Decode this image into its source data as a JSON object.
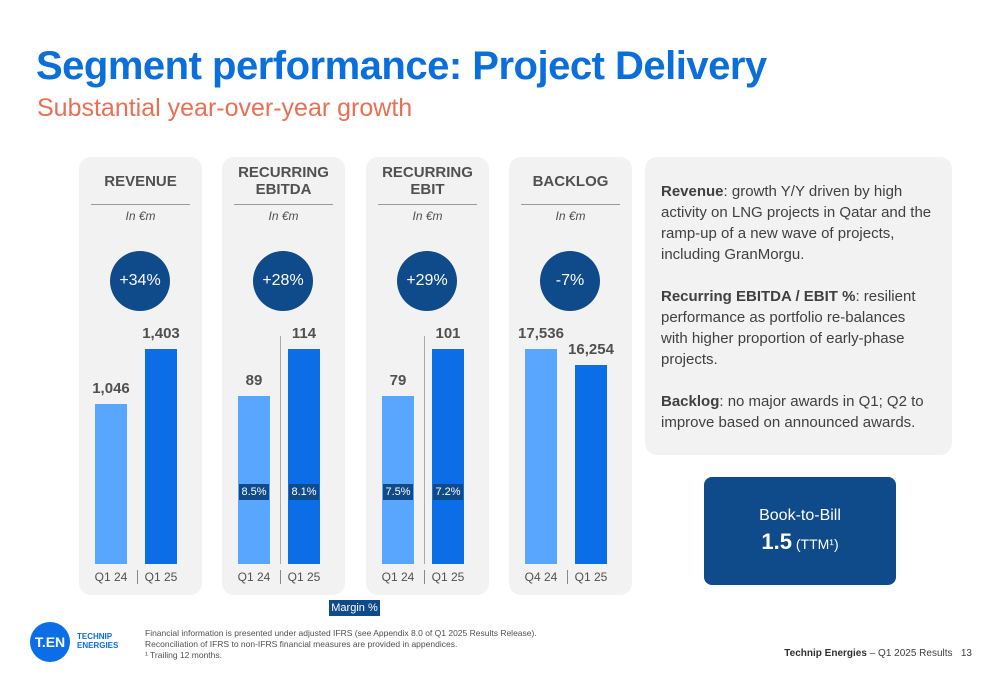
{
  "title": "Segment performance: Project Delivery",
  "subtitle": "Substantial year-over-year growth",
  "panels": [
    {
      "heading": "REVENUE",
      "unit": "In €m",
      "change": "+34%",
      "bars": [
        {
          "label": "Q1 24",
          "value": "1,046",
          "margin": ""
        },
        {
          "label": "Q1 25",
          "value": "1,403",
          "margin": ""
        }
      ]
    },
    {
      "heading": "RECURRING EBITDA",
      "unit": "In €m",
      "change": "+28%",
      "bars": [
        {
          "label": "Q1 24",
          "value": "89",
          "margin": "8.5%"
        },
        {
          "label": "Q1 25",
          "value": "114",
          "margin": "8.1%"
        }
      ]
    },
    {
      "heading": "RECURRING EBIT",
      "unit": "In €m",
      "change": "+29%",
      "bars": [
        {
          "label": "Q1 24",
          "value": "79",
          "margin": "7.5%"
        },
        {
          "label": "Q1 25",
          "value": "101",
          "margin": "7.2%"
        }
      ]
    },
    {
      "heading": "BACKLOG",
      "unit": "In €m",
      "change": "-7%",
      "bars": [
        {
          "label": "Q4 24",
          "value": "17,536",
          "margin": ""
        },
        {
          "label": "Q1 25",
          "value": "16,254",
          "margin": ""
        }
      ]
    }
  ],
  "commentary": [
    {
      "lead": "Revenue",
      "text": ": growth Y/Y driven by high activity on LNG projects in Qatar and the ramp-up of a new wave of projects, including GranMorgu."
    },
    {
      "lead": "Recurring EBITDA / EBIT %",
      "text": ": resilient performance as portfolio re-balances with higher proportion of early-phase projects."
    },
    {
      "lead": "Backlog",
      "text": ": no major awards in Q1; Q2 to improve based on announced awards."
    }
  ],
  "book_to_bill": {
    "label": "Book-to-Bill",
    "value": "1.5",
    "suffix": "(TTM¹)"
  },
  "margin_legend": "Margin %",
  "logo": {
    "mark": "T.EN",
    "line1": "TECHNIP",
    "line2": "ENERGIES"
  },
  "footnotes": [
    "Financial information is presented under adjusted IFRS (see Appendix 8.0 of Q1 2025 Results Release).",
    "Reconciliation of IFRS to non-IFRS financial measures are provided in appendices.",
    "¹ Trailing 12 months."
  ],
  "footer": {
    "company": "Technip Energies",
    "period": " – Q1 2025 Results",
    "page": "13"
  },
  "colors": {
    "title": "#0a6edb",
    "subtitle": "#e96f55",
    "bar_prior": "#58a6ff",
    "bar_current": "#0c6ee6",
    "navy": "#0f4a8a"
  },
  "chart_data": [
    {
      "type": "bar",
      "title": "REVENUE",
      "ylabel": "In €m",
      "categories": [
        "Q1 24",
        "Q1 25"
      ],
      "values": [
        1046,
        1403
      ],
      "annotation": "+34%"
    },
    {
      "type": "bar",
      "title": "RECURRING EBITDA",
      "ylabel": "In €m",
      "categories": [
        "Q1 24",
        "Q1 25"
      ],
      "values": [
        89,
        114
      ],
      "margins": [
        "8.5%",
        "8.1%"
      ],
      "annotation": "+28%"
    },
    {
      "type": "bar",
      "title": "RECURRING EBIT",
      "ylabel": "In €m",
      "categories": [
        "Q1 24",
        "Q1 25"
      ],
      "values": [
        79,
        101
      ],
      "margins": [
        "7.5%",
        "7.2%"
      ],
      "annotation": "+29%"
    },
    {
      "type": "bar",
      "title": "BACKLOG",
      "ylabel": "In €m",
      "categories": [
        "Q4 24",
        "Q1 25"
      ],
      "values": [
        17536,
        16254
      ],
      "annotation": "-7%"
    }
  ]
}
